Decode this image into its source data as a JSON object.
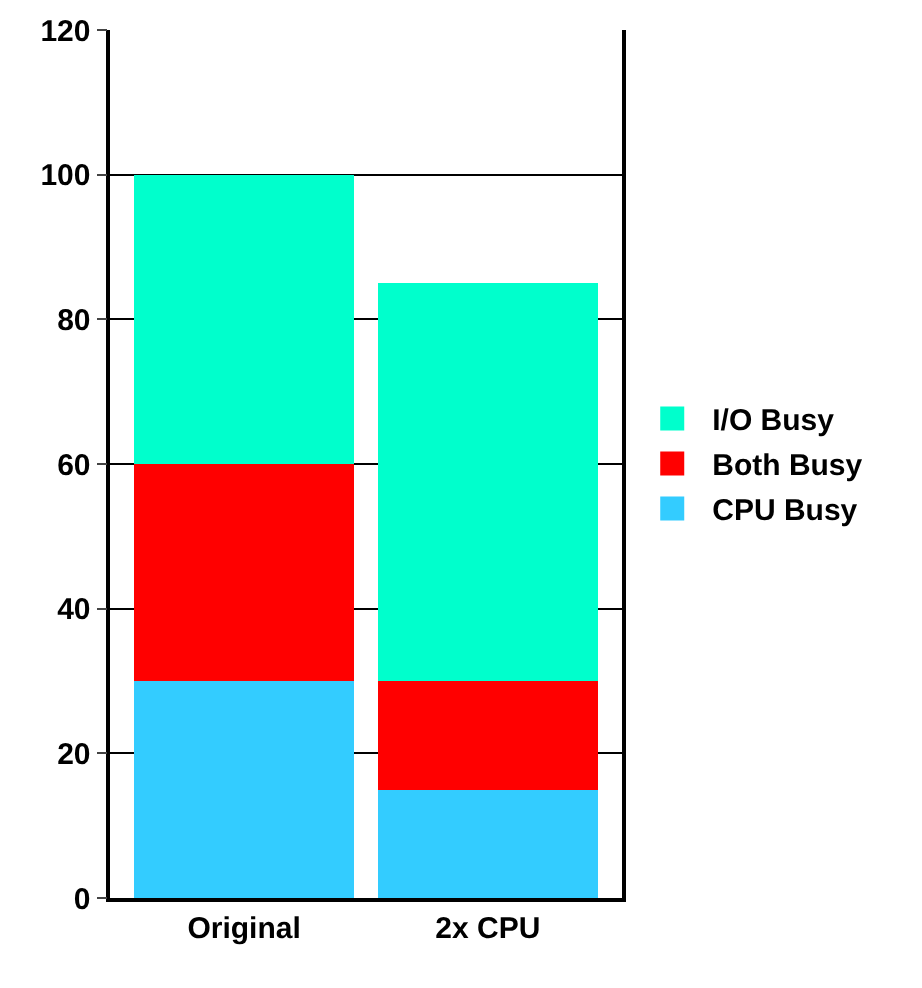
{
  "chart_data": {
    "type": "bar",
    "stacked": true,
    "categories": [
      "Original",
      "2x CPU"
    ],
    "series": [
      {
        "name": "CPU Busy",
        "color": "#33ccff",
        "values": [
          30,
          15
        ]
      },
      {
        "name": "Both Busy",
        "color": "#ff0000",
        "values": [
          30,
          15
        ]
      },
      {
        "name": "I/O Busy",
        "color": "#00ffcc",
        "values": [
          40,
          55
        ]
      }
    ],
    "ylim": [
      0,
      120
    ],
    "yticks": [
      0,
      20,
      40,
      60,
      80,
      100,
      120
    ],
    "grid": "y",
    "legend": "right"
  }
}
